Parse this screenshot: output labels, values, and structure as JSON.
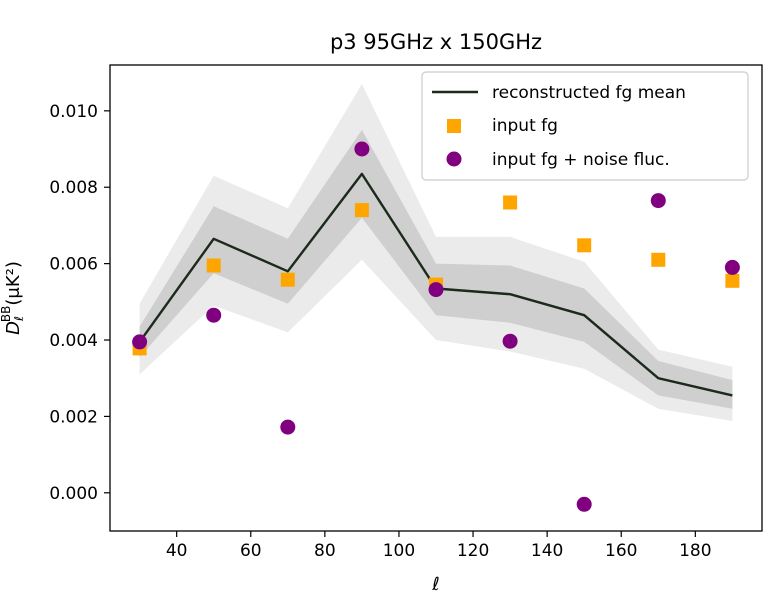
{
  "chart_data": {
    "type": "line",
    "title": "p3 95GHz x 150GHz",
    "xlabel": "ℓ",
    "ylabel": "D_ℓ^{BB} (μK²)",
    "ylabel_display": "D",
    "ylabel_sub": "ℓ",
    "ylabel_sup": "BB",
    "ylabel_unit": "(μK²)",
    "xlim": [
      22,
      198
    ],
    "ylim": [
      -0.001,
      0.0112
    ],
    "xticks": [
      40,
      60,
      80,
      100,
      120,
      140,
      160,
      180
    ],
    "yticks": [
      0.0,
      0.002,
      0.004,
      0.006,
      0.008,
      0.01
    ],
    "ytick_labels": [
      "0.000",
      "0.002",
      "0.004",
      "0.006",
      "0.008",
      "0.010"
    ],
    "x": [
      30,
      50,
      70,
      90,
      110,
      130,
      150,
      170,
      190
    ],
    "series": [
      {
        "name": "reconstructed fg mean",
        "kind": "line",
        "color": "#1b2a1b",
        "values": [
          0.00395,
          0.00665,
          0.0058,
          0.00835,
          0.00535,
          0.0052,
          0.00465,
          0.003,
          0.00255
        ],
        "band_1sigma_lower": [
          0.00355,
          0.00575,
          0.00495,
          0.0072,
          0.00465,
          0.00445,
          0.00395,
          0.00255,
          0.0022
        ],
        "band_1sigma_upper": [
          0.00435,
          0.0075,
          0.00665,
          0.0095,
          0.006,
          0.00595,
          0.00535,
          0.00345,
          0.00295
        ],
        "band_2sigma_lower": [
          0.0031,
          0.0049,
          0.0042,
          0.0061,
          0.004,
          0.0037,
          0.00325,
          0.0022,
          0.00188
        ],
        "band_2sigma_upper": [
          0.00495,
          0.0083,
          0.00745,
          0.0107,
          0.0067,
          0.0067,
          0.00605,
          0.00375,
          0.0033
        ]
      },
      {
        "name": "input fg",
        "kind": "scatter",
        "marker": "square",
        "color": "#ffa500",
        "values": [
          0.00378,
          0.00595,
          0.00558,
          0.0074,
          0.00545,
          0.0076,
          0.00648,
          0.0061,
          0.00555
        ]
      },
      {
        "name": "input fg + noise fluc.",
        "kind": "scatter",
        "marker": "circle",
        "color": "#800080",
        "values": [
          0.00395,
          0.00465,
          0.00172,
          0.009,
          0.00532,
          0.00397,
          -0.0003,
          0.00765,
          0.0059
        ]
      }
    ],
    "band_colors": {
      "inner": "#cfcfcf",
      "outer": "#ebebeb"
    },
    "legend": {
      "position": "top-right",
      "entries": [
        "reconstructed fg mean",
        "input fg",
        "input fg + noise fluc."
      ]
    },
    "grid": false
  }
}
